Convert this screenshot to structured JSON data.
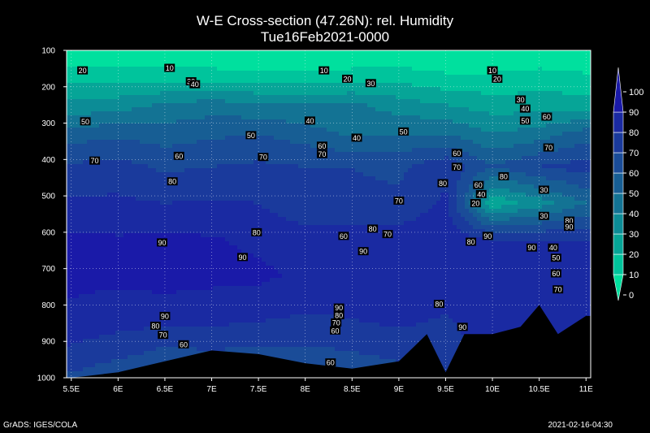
{
  "title_line1": "W-E Cross-section (47.26N): rel. Humidity",
  "title_line2": "Tue16Feb2021-0000",
  "footer_left": "GrADS: IGES/COLA",
  "footer_right": "2021-02-16-04:30",
  "chart_data": {
    "type": "heatmap",
    "xlim": [
      5.45,
      11.05
    ],
    "ylim": [
      1000,
      100
    ],
    "x_ticks": [
      5.5,
      6,
      6.5,
      7,
      7.5,
      8,
      8.5,
      9,
      9.5,
      10,
      10.5,
      11
    ],
    "x_tick_labels": [
      "5.5E",
      "6E",
      "6.5E",
      "7E",
      "7.5E",
      "8E",
      "8.5E",
      "9E",
      "9.5E",
      "10E",
      "10.5E",
      "11E"
    ],
    "y_ticks": [
      100,
      200,
      300,
      400,
      500,
      600,
      700,
      800,
      900,
      1000
    ],
    "y_tick_labels": [
      "100",
      "200",
      "300",
      "400",
      "500",
      "600",
      "700",
      "800",
      "900",
      "1000"
    ],
    "grid": true,
    "colorbar": {
      "levels": [
        0,
        10,
        20,
        30,
        40,
        50,
        60,
        70,
        80,
        90,
        100
      ],
      "labels": [
        "0",
        "10",
        "20",
        "30",
        "40",
        "50",
        "60",
        "70",
        "80",
        "90",
        "100"
      ],
      "colors": [
        "#00e09e",
        "#00c49c",
        "#06a597",
        "#0c8c96",
        "#137394",
        "#175e94",
        "#1a4c98",
        "#1a3a9c",
        "#1a2aa2",
        "#1a1aa8"
      ]
    },
    "profile": {
      "columns": [
        {
          "lon": 5.5,
          "values": [
            0,
            18,
            32,
            55,
            72,
            82,
            92,
            93,
            88,
            80,
            68
          ]
        },
        {
          "lon": 6.0,
          "values": [
            0,
            17,
            35,
            58,
            74,
            82,
            91,
            92,
            86,
            76,
            62
          ]
        },
        {
          "lon": 6.5,
          "values": [
            0,
            15,
            42,
            55,
            68,
            80,
            92,
            92,
            88,
            70,
            60
          ]
        },
        {
          "lon": 7.0,
          "values": [
            0,
            15,
            45,
            58,
            70,
            81,
            91,
            92,
            86,
            72,
            60
          ]
        },
        {
          "lon": 7.5,
          "values": [
            0,
            14,
            42,
            60,
            72,
            80,
            88,
            92,
            84,
            70,
            60
          ]
        },
        {
          "lon": 8.0,
          "values": [
            0,
            13,
            40,
            55,
            70,
            72,
            85,
            88,
            80,
            70,
            60
          ]
        },
        {
          "lon": 8.5,
          "values": [
            0,
            15,
            42,
            48,
            70,
            72,
            85,
            90,
            82,
            72,
            62
          ]
        },
        {
          "lon": 9.0,
          "values": [
            0,
            16,
            35,
            50,
            68,
            72,
            85,
            90,
            85,
            75,
            65
          ]
        },
        {
          "lon": 9.5,
          "values": [
            0,
            12,
            30,
            50,
            78,
            82,
            88,
            88,
            80,
            75,
            70
          ]
        },
        {
          "lon": 10.0,
          "values": [
            0,
            12,
            25,
            40,
            60,
            22,
            80,
            90,
            88,
            85,
            80
          ]
        },
        {
          "lon": 10.5,
          "values": [
            0,
            15,
            25,
            45,
            70,
            35,
            80,
            85,
            88,
            85,
            80
          ]
        },
        {
          "lon": 11.0,
          "values": [
            0,
            12,
            25,
            55,
            75,
            50,
            80,
            85,
            85,
            80,
            80
          ]
        }
      ],
      "pressure_levels": [
        100,
        175,
        250,
        330,
        420,
        520,
        620,
        720,
        820,
        910,
        1000
      ]
    },
    "terrain_top_pressure": {
      "lon": [
        5.5,
        6.0,
        6.5,
        7.0,
        7.5,
        8.0,
        8.5,
        9.0,
        9.3,
        9.5,
        9.7,
        10.0,
        10.3,
        10.5,
        10.7,
        11.0
      ],
      "p": [
        1000,
        985,
        955,
        925,
        935,
        960,
        975,
        955,
        880,
        985,
        880,
        880,
        860,
        800,
        880,
        830
      ]
    },
    "contour_labels": [
      {
        "lon": 5.62,
        "p": 155,
        "text": "20"
      },
      {
        "lon": 6.55,
        "p": 148,
        "text": "10"
      },
      {
        "lon": 6.78,
        "p": 185,
        "text": "30"
      },
      {
        "lon": 6.82,
        "p": 193,
        "text": "40"
      },
      {
        "lon": 8.2,
        "p": 155,
        "text": "10"
      },
      {
        "lon": 8.45,
        "p": 178,
        "text": "20"
      },
      {
        "lon": 8.7,
        "p": 190,
        "text": "30"
      },
      {
        "lon": 10.0,
        "p": 155,
        "text": "10"
      },
      {
        "lon": 10.05,
        "p": 178,
        "text": "20"
      },
      {
        "lon": 10.3,
        "p": 235,
        "text": "30"
      },
      {
        "lon": 10.35,
        "p": 260,
        "text": "40"
      },
      {
        "lon": 10.35,
        "p": 293,
        "text": "50"
      },
      {
        "lon": 10.58,
        "p": 282,
        "text": "60"
      },
      {
        "lon": 10.6,
        "p": 367,
        "text": "70"
      },
      {
        "lon": 5.65,
        "p": 295,
        "text": "50"
      },
      {
        "lon": 7.42,
        "p": 333,
        "text": "50"
      },
      {
        "lon": 8.05,
        "p": 293,
        "text": "40"
      },
      {
        "lon": 8.55,
        "p": 340,
        "text": "40"
      },
      {
        "lon": 9.05,
        "p": 323,
        "text": "50"
      },
      {
        "lon": 8.18,
        "p": 362,
        "text": "60"
      },
      {
        "lon": 8.18,
        "p": 385,
        "text": "70"
      },
      {
        "lon": 6.65,
        "p": 390,
        "text": "60"
      },
      {
        "lon": 5.75,
        "p": 403,
        "text": "70"
      },
      {
        "lon": 7.55,
        "p": 393,
        "text": "70"
      },
      {
        "lon": 6.58,
        "p": 460,
        "text": "80"
      },
      {
        "lon": 9.62,
        "p": 382,
        "text": "60"
      },
      {
        "lon": 9.62,
        "p": 420,
        "text": "70"
      },
      {
        "lon": 9.47,
        "p": 465,
        "text": "80"
      },
      {
        "lon": 9.85,
        "p": 470,
        "text": "60"
      },
      {
        "lon": 9.88,
        "p": 495,
        "text": "40"
      },
      {
        "lon": 9.82,
        "p": 520,
        "text": "20"
      },
      {
        "lon": 10.12,
        "p": 446,
        "text": "80"
      },
      {
        "lon": 10.55,
        "p": 483,
        "text": "30"
      },
      {
        "lon": 10.55,
        "p": 555,
        "text": "30"
      },
      {
        "lon": 10.82,
        "p": 568,
        "text": "80"
      },
      {
        "lon": 10.82,
        "p": 585,
        "text": "90"
      },
      {
        "lon": 9.0,
        "p": 513,
        "text": "70"
      },
      {
        "lon": 8.72,
        "p": 590,
        "text": "80"
      },
      {
        "lon": 8.88,
        "p": 605,
        "text": "70"
      },
      {
        "lon": 8.41,
        "p": 610,
        "text": "60"
      },
      {
        "lon": 7.48,
        "p": 600,
        "text": "80"
      },
      {
        "lon": 6.47,
        "p": 628,
        "text": "90"
      },
      {
        "lon": 7.33,
        "p": 668,
        "text": "90"
      },
      {
        "lon": 8.62,
        "p": 652,
        "text": "90"
      },
      {
        "lon": 9.77,
        "p": 626,
        "text": "80"
      },
      {
        "lon": 9.95,
        "p": 610,
        "text": "90"
      },
      {
        "lon": 10.42,
        "p": 642,
        "text": "90"
      },
      {
        "lon": 10.65,
        "p": 642,
        "text": "40"
      },
      {
        "lon": 10.68,
        "p": 670,
        "text": "50"
      },
      {
        "lon": 10.68,
        "p": 713,
        "text": "60"
      },
      {
        "lon": 10.7,
        "p": 757,
        "text": "70"
      },
      {
        "lon": 9.43,
        "p": 797,
        "text": "80"
      },
      {
        "lon": 9.68,
        "p": 860,
        "text": "90"
      },
      {
        "lon": 8.36,
        "p": 807,
        "text": "90"
      },
      {
        "lon": 8.36,
        "p": 828,
        "text": "80"
      },
      {
        "lon": 8.33,
        "p": 848,
        "text": "70"
      },
      {
        "lon": 8.32,
        "p": 870,
        "text": "60"
      },
      {
        "lon": 6.5,
        "p": 830,
        "text": "90"
      },
      {
        "lon": 6.4,
        "p": 857,
        "text": "80"
      },
      {
        "lon": 6.48,
        "p": 882,
        "text": "70"
      },
      {
        "lon": 6.7,
        "p": 908,
        "text": "60"
      },
      {
        "lon": 8.27,
        "p": 958,
        "text": "60"
      }
    ]
  }
}
